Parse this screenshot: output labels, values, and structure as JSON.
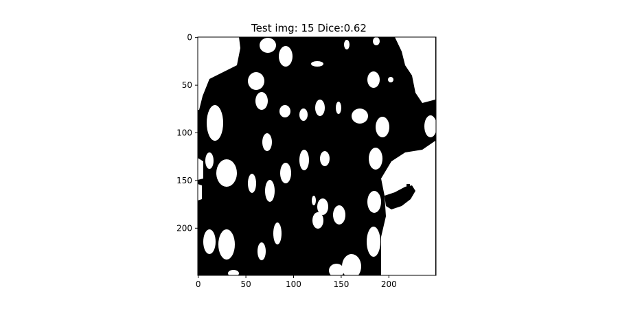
{
  "figure": {
    "title": "Test img: 15 Dice:0.62"
  },
  "image": {
    "description_colors": {
      "mask_on": "#ffffff",
      "background": "#000000"
    },
    "xticks": [
      0,
      50,
      100,
      150,
      200
    ],
    "yticks": [
      0,
      50,
      100,
      150,
      200
    ],
    "xlim": [
      0,
      249
    ],
    "ylim": [
      0,
      249
    ],
    "xtick_labels": [
      "0",
      "50",
      "100",
      "150",
      "200"
    ],
    "ytick_labels": [
      "0",
      "50",
      "100",
      "150",
      "200"
    ]
  }
}
